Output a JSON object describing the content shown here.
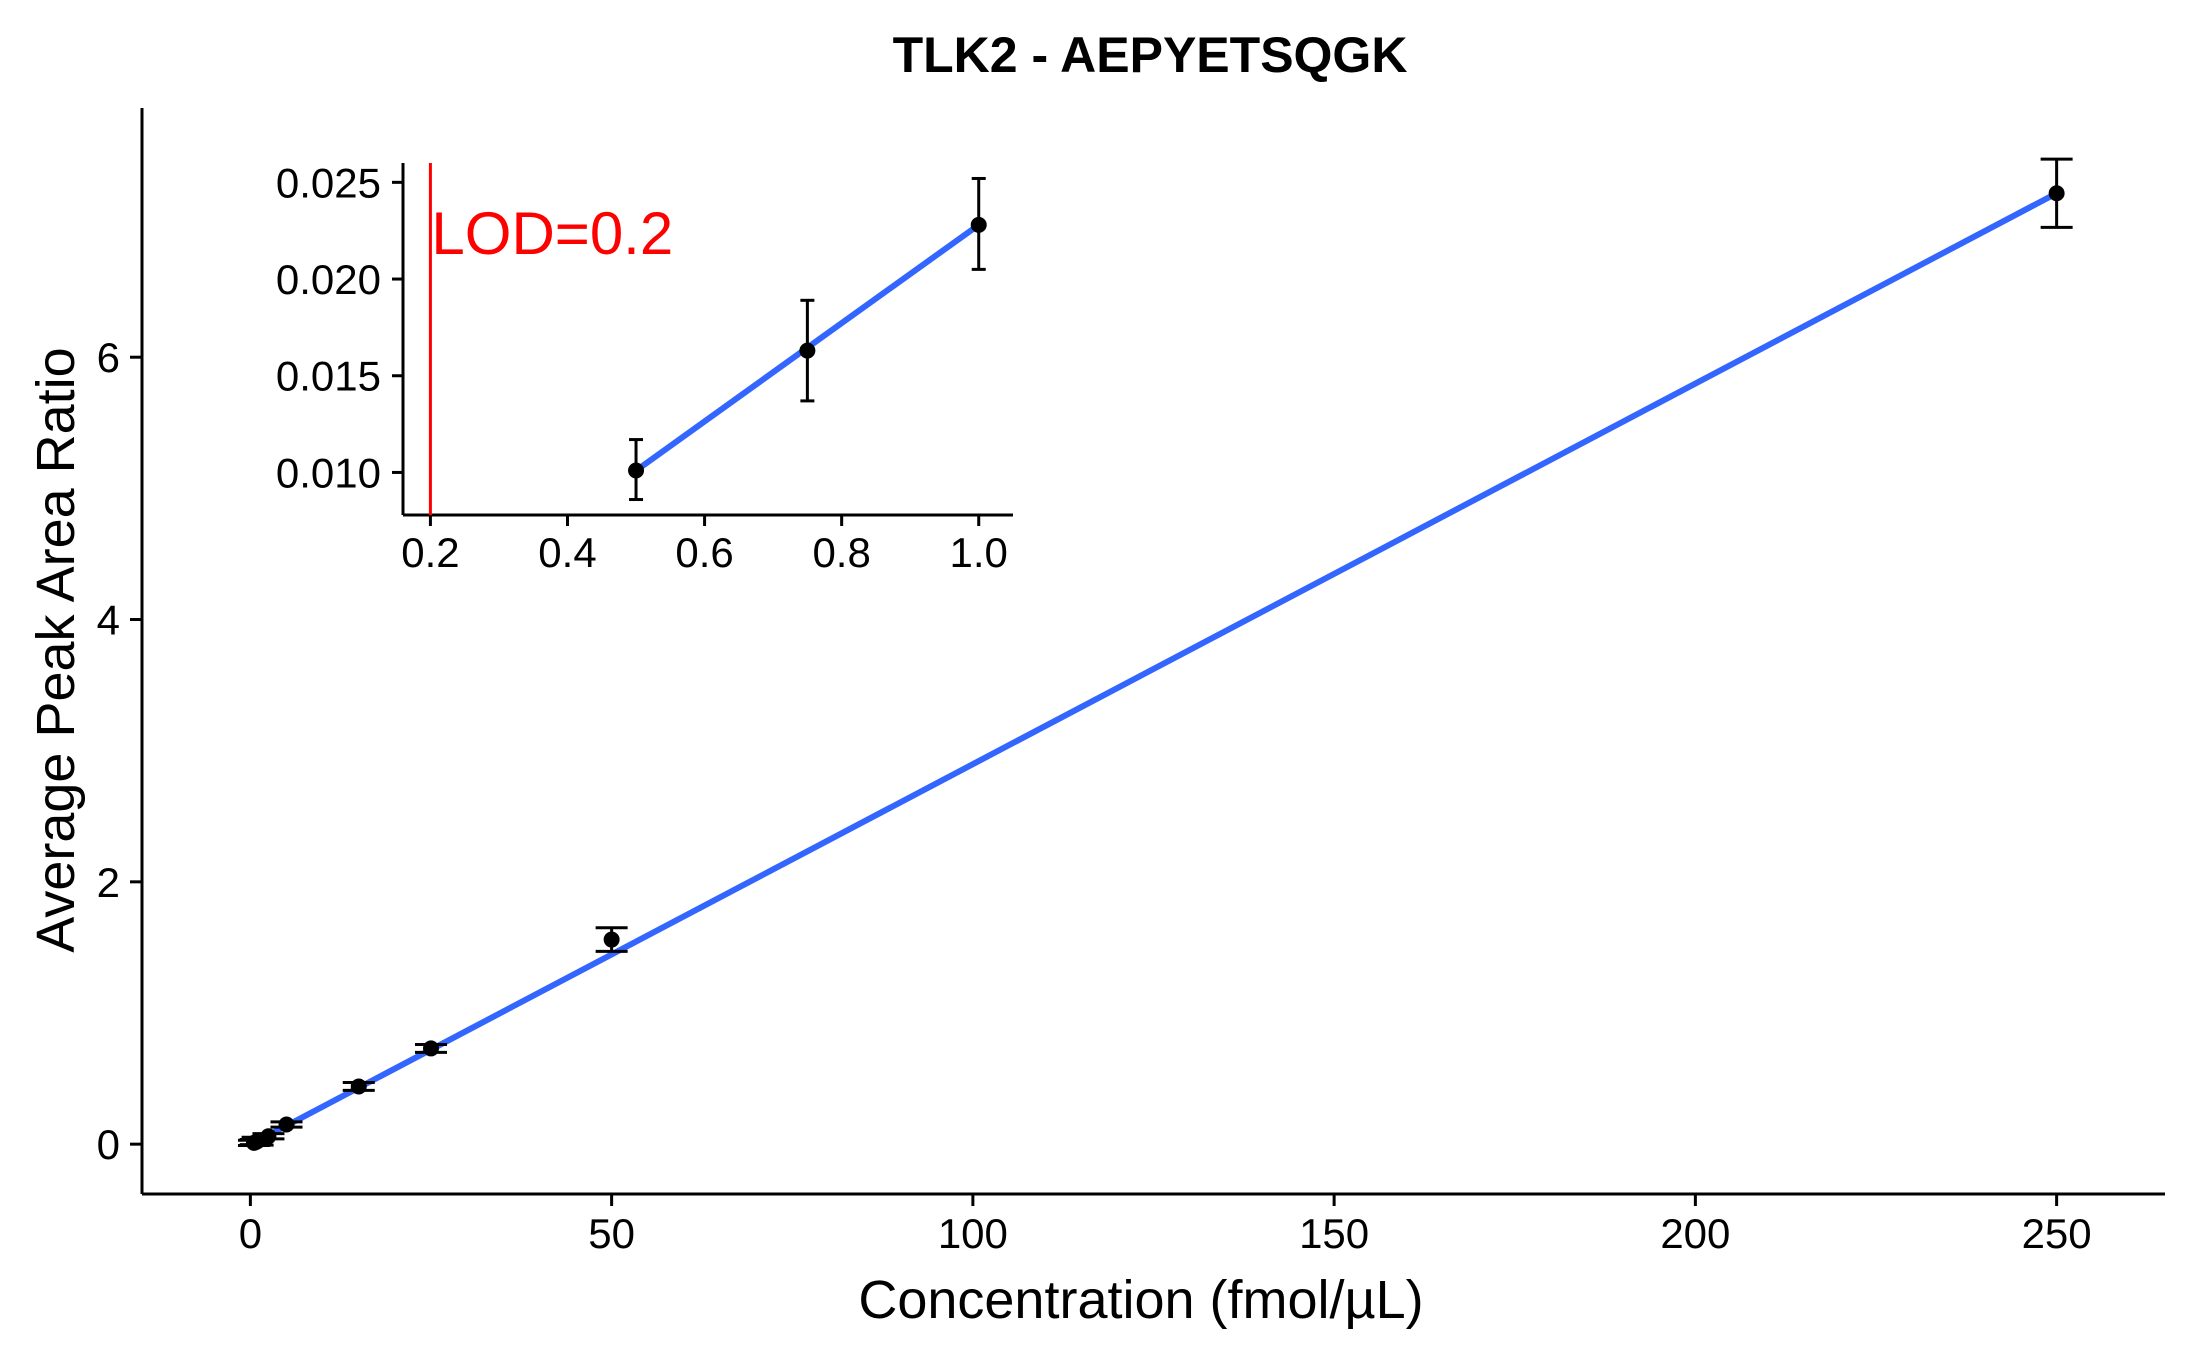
{
  "chart_data": [
    {
      "type": "scatter",
      "title": "TLK2 - AEPYETSQGK",
      "xlabel": "Concentration (fmol/µL)",
      "ylabel": "Average Peak Area Ratio",
      "xlim": [
        -15,
        265
      ],
      "ylim": [
        -0.38,
        7.9
      ],
      "xticks": [
        0,
        50,
        100,
        150,
        200,
        250
      ],
      "yticks": [
        0,
        2,
        4,
        6
      ],
      "xtick_labels": [
        "0",
        "50",
        "100",
        "150",
        "200",
        "250"
      ],
      "ytick_labels": [
        "0",
        "2",
        "4",
        "6"
      ],
      "grid": false,
      "series": [
        {
          "points": [
            {
              "x": 0.5,
              "y": 0.01,
              "err": 0.02
            },
            {
              "x": 0.75,
              "y": 0.016,
              "err": 0.02
            },
            {
              "x": 1,
              "y": 0.023,
              "err": 0.03
            },
            {
              "x": 2.5,
              "y": 0.06,
              "err": 0.02
            },
            {
              "x": 5,
              "y": 0.15,
              "err": 0.02
            },
            {
              "x": 15,
              "y": 0.44,
              "err": 0.03
            },
            {
              "x": 25,
              "y": 0.73,
              "err": 0.03
            },
            {
              "x": 50,
              "y": 1.56,
              "err": 0.09
            },
            {
              "x": 250,
              "y": 7.25,
              "err": 0.26
            }
          ]
        }
      ],
      "fit_line": {
        "x": [
          0.5,
          250
        ],
        "y": [
          0.01,
          7.25
        ],
        "color": "#3366ff"
      },
      "colors": {
        "points": "#000000",
        "fit": "#3366ff"
      }
    },
    {
      "type": "scatter",
      "title": "",
      "xlabel": "",
      "ylabel": "",
      "xlim": [
        0.16,
        1.05
      ],
      "ylim": [
        0.0078,
        0.026
      ],
      "xticks": [
        0.2,
        0.4,
        0.6,
        0.8,
        1.0
      ],
      "yticks": [
        0.01,
        0.015,
        0.02,
        0.025
      ],
      "xtick_labels": [
        "0.2",
        "0.4",
        "0.6",
        "0.8",
        "1.0"
      ],
      "ytick_labels": [
        "0.010",
        "0.015",
        "0.020",
        "0.025"
      ],
      "grid": false,
      "series": [
        {
          "points": [
            {
              "x": 0.5,
              "y": 0.0101,
              "lo": 0.0086,
              "hi": 0.0117
            },
            {
              "x": 0.75,
              "y": 0.0163,
              "lo": 0.0137,
              "hi": 0.0189
            },
            {
              "x": 1.0,
              "y": 0.0228,
              "lo": 0.0205,
              "hi": 0.0252
            }
          ]
        }
      ],
      "fit_line": {
        "x": [
          0.5,
          1.0
        ],
        "y": [
          0.0101,
          0.0228
        ],
        "color": "#3366ff"
      },
      "lod": {
        "x": 0.2,
        "label": "LOD=0.2",
        "color": "#ff0000"
      },
      "colors": {
        "points": "#000000",
        "fit": "#3366ff",
        "lod": "#ff0000"
      }
    }
  ]
}
